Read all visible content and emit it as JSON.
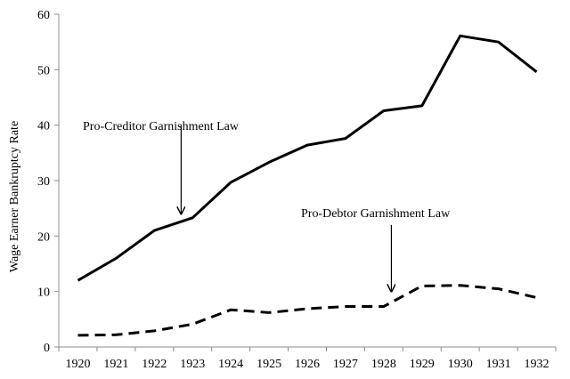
{
  "chart_data": {
    "type": "line",
    "title": "",
    "xlabel": "",
    "ylabel": "Wage Earner Bankruptcy Rate",
    "ylim": [
      0,
      60
    ],
    "yticks": [
      0,
      10,
      20,
      30,
      40,
      50,
      60
    ],
    "grid": false,
    "legend": "none",
    "categories": [
      "1920",
      "1921",
      "1922",
      "1923",
      "1924",
      "1925",
      "1926",
      "1927",
      "1928",
      "1929",
      "1930",
      "1931",
      "1932"
    ],
    "series": [
      {
        "name": "Pro-Creditor",
        "style": "solid",
        "color": "#000000",
        "values": [
          12.0,
          16.0,
          21.0,
          23.3,
          29.7,
          33.3,
          36.4,
          37.6,
          42.6,
          43.5,
          56.1,
          55.0,
          49.6
        ]
      },
      {
        "name": "Pro-Debtor",
        "style": "dashed",
        "color": "#000000",
        "values": [
          2.1,
          2.2,
          2.9,
          4.1,
          6.7,
          6.2,
          6.9,
          7.3,
          7.3,
          11.0,
          11.1,
          10.5,
          8.9
        ]
      }
    ],
    "annotations": [
      {
        "text": "Pro-Creditor Garnishment Law",
        "x": 2.7,
        "y_from": 40,
        "y_to": 24
      },
      {
        "text": "Pro-Debtor Garnishment Law",
        "x": 8.2,
        "y_from": 22,
        "y_to": 10
      }
    ]
  }
}
